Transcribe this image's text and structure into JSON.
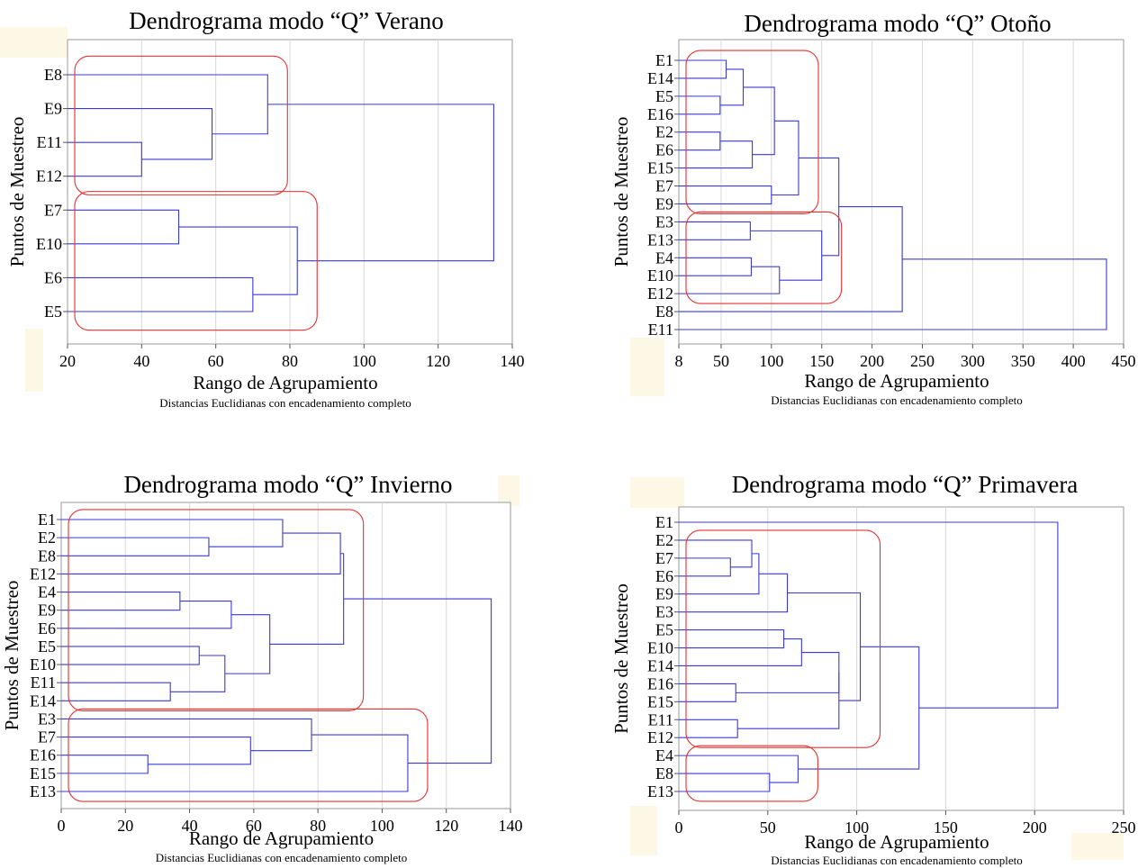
{
  "chart_data": [
    {
      "type": "dendrogram",
      "title": "Dendrograma modo “Q” Verano",
      "xlabel": "Rango de Agrupamiento",
      "ylabel": "Puntos de Muestreo",
      "note": "Distancias Euclidianas con encadenamiento completo",
      "xlim": [
        20,
        140
      ],
      "xticks": [
        20,
        40,
        60,
        80,
        100,
        120,
        140
      ],
      "leaves": [
        "E8",
        "E9",
        "E11",
        "E12",
        "E7",
        "E10",
        "E6",
        "E5"
      ],
      "merges": [
        {
          "a": "E11",
          "b": "E12",
          "height": 40
        },
        {
          "a": "E9",
          "b": 0,
          "height": 59
        },
        {
          "a": "E8",
          "b": 1,
          "height": 74
        },
        {
          "a": "E7",
          "b": "E10",
          "height": 50
        },
        {
          "a": "E6",
          "b": "E5",
          "height": 70
        },
        {
          "a": 3,
          "b": 4,
          "height": 82
        },
        {
          "a": 2,
          "b": 5,
          "height": 135
        }
      ],
      "groups": [
        [
          "E8",
          "E12"
        ],
        [
          "E7",
          "E5"
        ]
      ],
      "colors": {
        "line": "#3a3ad8",
        "group": "#e83030",
        "grid": "#d8d8d8"
      }
    },
    {
      "type": "dendrogram",
      "title": "Dendrograma modo “Q” Otoño",
      "xlabel": "Rango de Agrupamiento",
      "ylabel": "Puntos de Muestreo",
      "note": "Distancias Euclidianas con encadenamiento completo",
      "xlim": [
        8,
        450
      ],
      "xticks": [
        8,
        50,
        100,
        150,
        200,
        250,
        300,
        350,
        400,
        450
      ],
      "leaves": [
        "E1",
        "E14",
        "E5",
        "E16",
        "E2",
        "E6",
        "E15",
        "E7",
        "E9",
        "E3",
        "E13",
        "E4",
        "E10",
        "E12",
        "E8",
        "E11"
      ],
      "merges": [
        {
          "a": "E1",
          "b": "E14",
          "height": 55
        },
        {
          "a": "E5",
          "b": "E16",
          "height": 49
        },
        {
          "a": 0,
          "b": 1,
          "height": 72
        },
        {
          "a": "E2",
          "b": "E6",
          "height": 49
        },
        {
          "a": 3,
          "b": "E15",
          "height": 81
        },
        {
          "a": 2,
          "b": 4,
          "height": 103
        },
        {
          "a": "E7",
          "b": "E9",
          "height": 100
        },
        {
          "a": 5,
          "b": 6,
          "height": 127
        },
        {
          "a": "E3",
          "b": "E13",
          "height": 79
        },
        {
          "a": "E4",
          "b": "E10",
          "height": 80
        },
        {
          "a": 9,
          "b": "E12",
          "height": 108
        },
        {
          "a": 8,
          "b": 10,
          "height": 150
        },
        {
          "a": 7,
          "b": 11,
          "height": 167
        },
        {
          "a": 12,
          "b": "E8",
          "height": 230
        },
        {
          "a": 13,
          "b": "E11",
          "height": 433
        }
      ],
      "groups": [
        [
          "E1",
          "E9"
        ],
        [
          "E3",
          "E12"
        ]
      ],
      "colors": {
        "line": "#3a3ad8",
        "group": "#e83030",
        "grid": "#d8d8d8"
      }
    },
    {
      "type": "dendrogram",
      "title": "Dendrograma modo “Q” Invierno",
      "xlabel": "Rango de Agrupamiento",
      "ylabel": "Puntos de Muestreo",
      "note": "Distancias Euclidianas con encadenamiento completo",
      "xlim": [
        0,
        140
      ],
      "xticks": [
        0,
        20,
        40,
        60,
        80,
        100,
        120,
        140
      ],
      "leaves": [
        "E1",
        "E2",
        "E8",
        "E12",
        "E4",
        "E9",
        "E6",
        "E5",
        "E10",
        "E11",
        "E14",
        "E3",
        "E7",
        "E16",
        "E15",
        "E13"
      ],
      "merges": [
        {
          "a": "E2",
          "b": "E8",
          "height": 46
        },
        {
          "a": "E1",
          "b": 0,
          "height": 69
        },
        {
          "a": 1,
          "b": "E12",
          "height": 87
        },
        {
          "a": "E4",
          "b": "E9",
          "height": 37
        },
        {
          "a": 3,
          "b": "E6",
          "height": 53
        },
        {
          "a": "E5",
          "b": "E10",
          "height": 43
        },
        {
          "a": "E11",
          "b": "E14",
          "height": 34
        },
        {
          "a": 5,
          "b": 6,
          "height": 51
        },
        {
          "a": 4,
          "b": 7,
          "height": 65
        },
        {
          "a": 2,
          "b": 8,
          "height": 88
        },
        {
          "a": "E16",
          "b": "E15",
          "height": 27
        },
        {
          "a": "E7",
          "b": 10,
          "height": 59
        },
        {
          "a": "E3",
          "b": 11,
          "height": 78
        },
        {
          "a": 12,
          "b": "E13",
          "height": 108
        },
        {
          "a": 9,
          "b": 13,
          "height": 134
        }
      ],
      "groups": [
        [
          "E1",
          "E14"
        ],
        [
          "E3",
          "E13"
        ]
      ],
      "colors": {
        "line": "#3a3ad8",
        "group": "#e83030",
        "grid": "#d8d8d8"
      }
    },
    {
      "type": "dendrogram",
      "title": "Dendrograma modo “Q” Primavera",
      "xlabel": "Rango de Agrupamiento",
      "ylabel": "Puntos de Muestreo",
      "note": "Distancias Euclidianas con encadenamiento completo",
      "xlim": [
        0,
        250
      ],
      "xticks": [
        0,
        50,
        100,
        150,
        200,
        250
      ],
      "leaves": [
        "E1",
        "E2",
        "E7",
        "E6",
        "E9",
        "E3",
        "E5",
        "E10",
        "E14",
        "E16",
        "E15",
        "E11",
        "E12",
        "E4",
        "E8",
        "E13"
      ],
      "merges": [
        {
          "a": "E7",
          "b": "E6",
          "height": 29
        },
        {
          "a": "E2",
          "b": 0,
          "height": 41
        },
        {
          "a": 1,
          "b": "E9",
          "height": 45
        },
        {
          "a": 2,
          "b": "E3",
          "height": 61
        },
        {
          "a": "E5",
          "b": "E10",
          "height": 59
        },
        {
          "a": 4,
          "b": "E14",
          "height": 69
        },
        {
          "a": "E16",
          "b": "E15",
          "height": 32
        },
        {
          "a": 5,
          "b": 6,
          "height": 90
        },
        {
          "a": "E11",
          "b": "E12",
          "height": 33
        },
        {
          "a": 7,
          "b": 8,
          "height": 90
        },
        {
          "a": 3,
          "b": 9,
          "height": 102
        },
        {
          "a": "E8",
          "b": "E13",
          "height": 51
        },
        {
          "a": "E4",
          "b": 11,
          "height": 67
        },
        {
          "a": 10,
          "b": 12,
          "height": 135
        },
        {
          "a": "E1",
          "b": 13,
          "height": 213
        }
      ],
      "groups": [
        [
          "E2",
          "E12"
        ],
        [
          "E4",
          "E13"
        ]
      ],
      "colors": {
        "line": "#3a3ad8",
        "group": "#e83030",
        "grid": "#d8d8d8"
      }
    }
  ]
}
